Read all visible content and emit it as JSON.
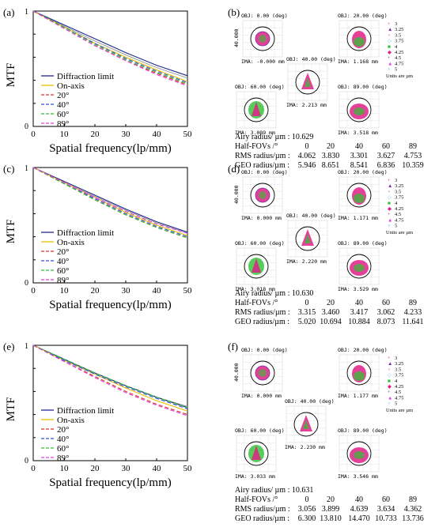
{
  "colors": {
    "diff": "#1f2a8c",
    "onaxis": "#e8c000",
    "d20": "#e0302a",
    "d40": "#3050e0",
    "d60": "#30c030",
    "d89": "#e040e0",
    "tan_gray": "#9a9a9a",
    "spot_magenta": "#e0208a",
    "spot_green": "#30c030",
    "spot_purple": "#7030a0"
  },
  "chart_data": [
    {
      "panel": "(a)",
      "type": "line",
      "ylabel": "MTF",
      "xlabel": "Spatial frequency(lp/mm)",
      "xticks": [
        "0",
        "10",
        "20",
        "30",
        "40",
        "50"
      ],
      "xlim": [
        0,
        50
      ],
      "ylim": [
        0,
        1
      ],
      "legend": [
        "Diffraction limit",
        "On-axis",
        "20°",
        "40°",
        "60°",
        "89°"
      ],
      "series": [
        {
          "name": "Diffraction limit",
          "x": [
            0,
            10,
            20,
            30,
            40,
            50
          ],
          "y": [
            1.0,
            0.88,
            0.76,
            0.64,
            0.53,
            0.44
          ]
        },
        {
          "name": "On-axis",
          "x": [
            0,
            10,
            20,
            30,
            40,
            50
          ],
          "y": [
            1.0,
            0.86,
            0.72,
            0.6,
            0.49,
            0.39
          ]
        },
        {
          "name": "20°",
          "x": [
            0,
            10,
            20,
            30,
            40,
            50
          ],
          "y": [
            1.0,
            0.85,
            0.7,
            0.57,
            0.46,
            0.36
          ]
        },
        {
          "name": "40°",
          "x": [
            0,
            10,
            20,
            30,
            40,
            50
          ],
          "y": [
            1.0,
            0.86,
            0.72,
            0.59,
            0.48,
            0.38
          ]
        },
        {
          "name": "60°",
          "x": [
            0,
            10,
            20,
            30,
            40,
            50
          ],
          "y": [
            1.0,
            0.86,
            0.71,
            0.58,
            0.47,
            0.37
          ]
        },
        {
          "name": "89°",
          "x": [
            0,
            10,
            20,
            30,
            40,
            50
          ],
          "y": [
            1.0,
            0.85,
            0.7,
            0.57,
            0.45,
            0.35
          ]
        }
      ],
      "extra_gray": [
        [
          0,
          10,
          20,
          30,
          40,
          50
        ],
        [
          1.0,
          0.87,
          0.74,
          0.62,
          0.51,
          0.42
        ]
      ]
    },
    {
      "panel": "(c)",
      "type": "line",
      "ylabel": "MTF",
      "xlabel": "Spatial frequency(lp/mm)",
      "xticks": [
        "0",
        "10",
        "20",
        "30",
        "40",
        "50"
      ],
      "xlim": [
        0,
        50
      ],
      "ylim": [
        0,
        1
      ],
      "legend": [
        "Diffraction limit",
        "On-axis",
        "20°",
        "40°",
        "60°",
        "89°"
      ],
      "series": [
        {
          "name": "Diffraction limit",
          "x": [
            0,
            10,
            20,
            30,
            40,
            50
          ],
          "y": [
            1.0,
            0.88,
            0.76,
            0.64,
            0.53,
            0.44
          ]
        },
        {
          "name": "On-axis",
          "x": [
            0,
            10,
            20,
            30,
            40,
            50
          ],
          "y": [
            1.0,
            0.87,
            0.74,
            0.61,
            0.5,
            0.41
          ]
        },
        {
          "name": "20°",
          "x": [
            0,
            10,
            20,
            30,
            40,
            50
          ],
          "y": [
            1.0,
            0.86,
            0.72,
            0.59,
            0.48,
            0.39
          ]
        },
        {
          "name": "40°",
          "x": [
            0,
            10,
            20,
            30,
            40,
            50
          ],
          "y": [
            1.0,
            0.86,
            0.73,
            0.6,
            0.49,
            0.4
          ]
        },
        {
          "name": "60°",
          "x": [
            0,
            10,
            20,
            30,
            40,
            50
          ],
          "y": [
            1.0,
            0.86,
            0.72,
            0.59,
            0.48,
            0.39
          ]
        },
        {
          "name": "89°",
          "x": [
            0,
            10,
            20,
            30,
            40,
            50
          ],
          "y": [
            1.0,
            0.87,
            0.74,
            0.62,
            0.51,
            0.43
          ]
        }
      ],
      "extra_gray": [
        [
          0,
          10,
          20,
          30,
          40,
          50
        ],
        [
          1.0,
          0.87,
          0.75,
          0.63,
          0.52,
          0.43
        ]
      ]
    },
    {
      "panel": "(e)",
      "type": "line",
      "ylabel": "MTF",
      "xlabel": "Spatial frequency(lp/mm)",
      "xticks": [
        "0",
        "10",
        "20",
        "30",
        "40",
        "50"
      ],
      "xlim": [
        0,
        50
      ],
      "ylim": [
        0,
        1
      ],
      "legend": [
        "Diffraction limit",
        "On-axis",
        "20°",
        "40°",
        "60°",
        "89°"
      ],
      "series": [
        {
          "name": "Diffraction limit",
          "x": [
            0,
            10,
            20,
            30,
            40,
            50
          ],
          "y": [
            1.0,
            0.88,
            0.76,
            0.65,
            0.55,
            0.46
          ]
        },
        {
          "name": "On-axis",
          "x": [
            0,
            10,
            20,
            30,
            40,
            50
          ],
          "y": [
            1.0,
            0.87,
            0.75,
            0.63,
            0.52,
            0.43
          ]
        },
        {
          "name": "20°",
          "x": [
            0,
            10,
            20,
            30,
            40,
            50
          ],
          "y": [
            1.0,
            0.86,
            0.73,
            0.6,
            0.49,
            0.4
          ]
        },
        {
          "name": "40°",
          "x": [
            0,
            10,
            20,
            30,
            40,
            50
          ],
          "y": [
            1.0,
            0.87,
            0.75,
            0.64,
            0.54,
            0.45
          ]
        },
        {
          "name": "60°",
          "x": [
            0,
            10,
            20,
            30,
            40,
            50
          ],
          "y": [
            1.0,
            0.88,
            0.76,
            0.65,
            0.55,
            0.46
          ]
        },
        {
          "name": "89°",
          "x": [
            0,
            10,
            20,
            30,
            40,
            50
          ],
          "y": [
            1.0,
            0.86,
            0.72,
            0.59,
            0.48,
            0.39
          ]
        }
      ],
      "extra_gray": [
        [
          0,
          10,
          20,
          30,
          40,
          50
        ],
        [
          1.0,
          0.88,
          0.76,
          0.65,
          0.55,
          0.47
        ]
      ]
    }
  ],
  "spot_panels": [
    {
      "panel": "(b)",
      "scale_label": "40.000",
      "legend": [
        "3",
        "3.25",
        "3.5",
        "3.75",
        "4",
        "4.25",
        "4.5",
        "4.75",
        "5"
      ],
      "units_note": "Units are µm",
      "cells": [
        {
          "obj": "OBJ: 0.00 (deg)",
          "ima": "IMA: -0.000 mm"
        },
        {
          "obj": "OBJ: 40.00 (deg)",
          "ima": "IMA: 2.213 mm"
        },
        {
          "obj": "OBJ: 20.00 (deg)",
          "ima": "IMA: 1.168 mm"
        },
        {
          "obj": "OBJ: 60.00 (deg)",
          "ima": "IMA: 3.009 mm"
        },
        {
          "obj": "OBJ: 89.00 (deg)",
          "ima": "IMA: 3.518 mm"
        }
      ],
      "airy": "Airy radius/ µm :   10.629",
      "table": {
        "headers": [
          "Half-FOVs /°",
          "0",
          "20",
          "40",
          "60",
          "89"
        ],
        "rows": [
          [
            "RMS radius/µm :",
            "4.062",
            "3.830",
            "3.301",
            "3.627",
            "4.753"
          ],
          [
            "GEO radius/µm :",
            "5.946",
            "8.651",
            "8.541",
            "6.836",
            "10.359"
          ]
        ]
      }
    },
    {
      "panel": "(d)",
      "scale_label": "40.000",
      "legend": [
        "3",
        "3.25",
        "3.5",
        "3.75",
        "4",
        "4.25",
        "4.5",
        "4.75",
        "5"
      ],
      "units_note": "Units are µm",
      "cells": [
        {
          "obj": "OBJ: 0.00 (deg)",
          "ima": "IMA: 0.000 mm"
        },
        {
          "obj": "OBJ: 40.00 (deg)",
          "ima": "IMA: 2.220 mm"
        },
        {
          "obj": "OBJ: 20.00 (deg)",
          "ima": "IMA: 1.171 mm"
        },
        {
          "obj": "OBJ: 60.00 (deg)",
          "ima": "IMA: 3.018 mm"
        },
        {
          "obj": "OBJ: 89.00 (deg)",
          "ima": "IMA: 3.529 mm"
        }
      ],
      "airy": "Airy radius/ µm :   10.630",
      "table": {
        "headers": [
          "Half-FOVs /°",
          "0",
          "20",
          "40",
          "60",
          "89"
        ],
        "rows": [
          [
            "RMS radius/µm :",
            "3.315",
            "3.460",
            "3.417",
            "3.062",
            "4.233"
          ],
          [
            "GEO radius/µm :",
            "5.020",
            "10.694",
            "10.884",
            "8.073",
            "11.641"
          ]
        ]
      }
    },
    {
      "panel": "(f)",
      "scale_label": "40.000",
      "legend": [
        "3",
        "3.25",
        "3.5",
        "3.75",
        "4",
        "4.25",
        "4.5",
        "4.75",
        "5"
      ],
      "units_note": "Units are µm",
      "cells": [
        {
          "obj": "OBJ: 0.00 (deg)",
          "ima": "IMA: 0.000 mm"
        },
        {
          "obj": "OBJ: 40.00 (deg)",
          "ima": "IMA: 2.230 mm"
        },
        {
          "obj": "OBJ: 20.00 (deg)",
          "ima": "IMA: 1.177 mm"
        },
        {
          "obj": "OBJ: 60.00 (deg)",
          "ima": "IMA: 3.033 mm"
        },
        {
          "obj": "OBJ: 89.00 (deg)",
          "ima": "IMA: 3.546 mm"
        }
      ],
      "airy": "Airy radius/ µm :   10.631",
      "table": {
        "headers": [
          "Half-FOVs /°",
          "0",
          "20",
          "40",
          "60",
          "89"
        ],
        "rows": [
          [
            "RMS radius/µm :",
            "3.056",
            "3.899",
            "4.639",
            "3.634",
            "4.362"
          ],
          [
            "GEO radius/µm :",
            "6.300",
            "13.810",
            "14.470",
            "10.733",
            "13.736"
          ]
        ]
      }
    }
  ]
}
